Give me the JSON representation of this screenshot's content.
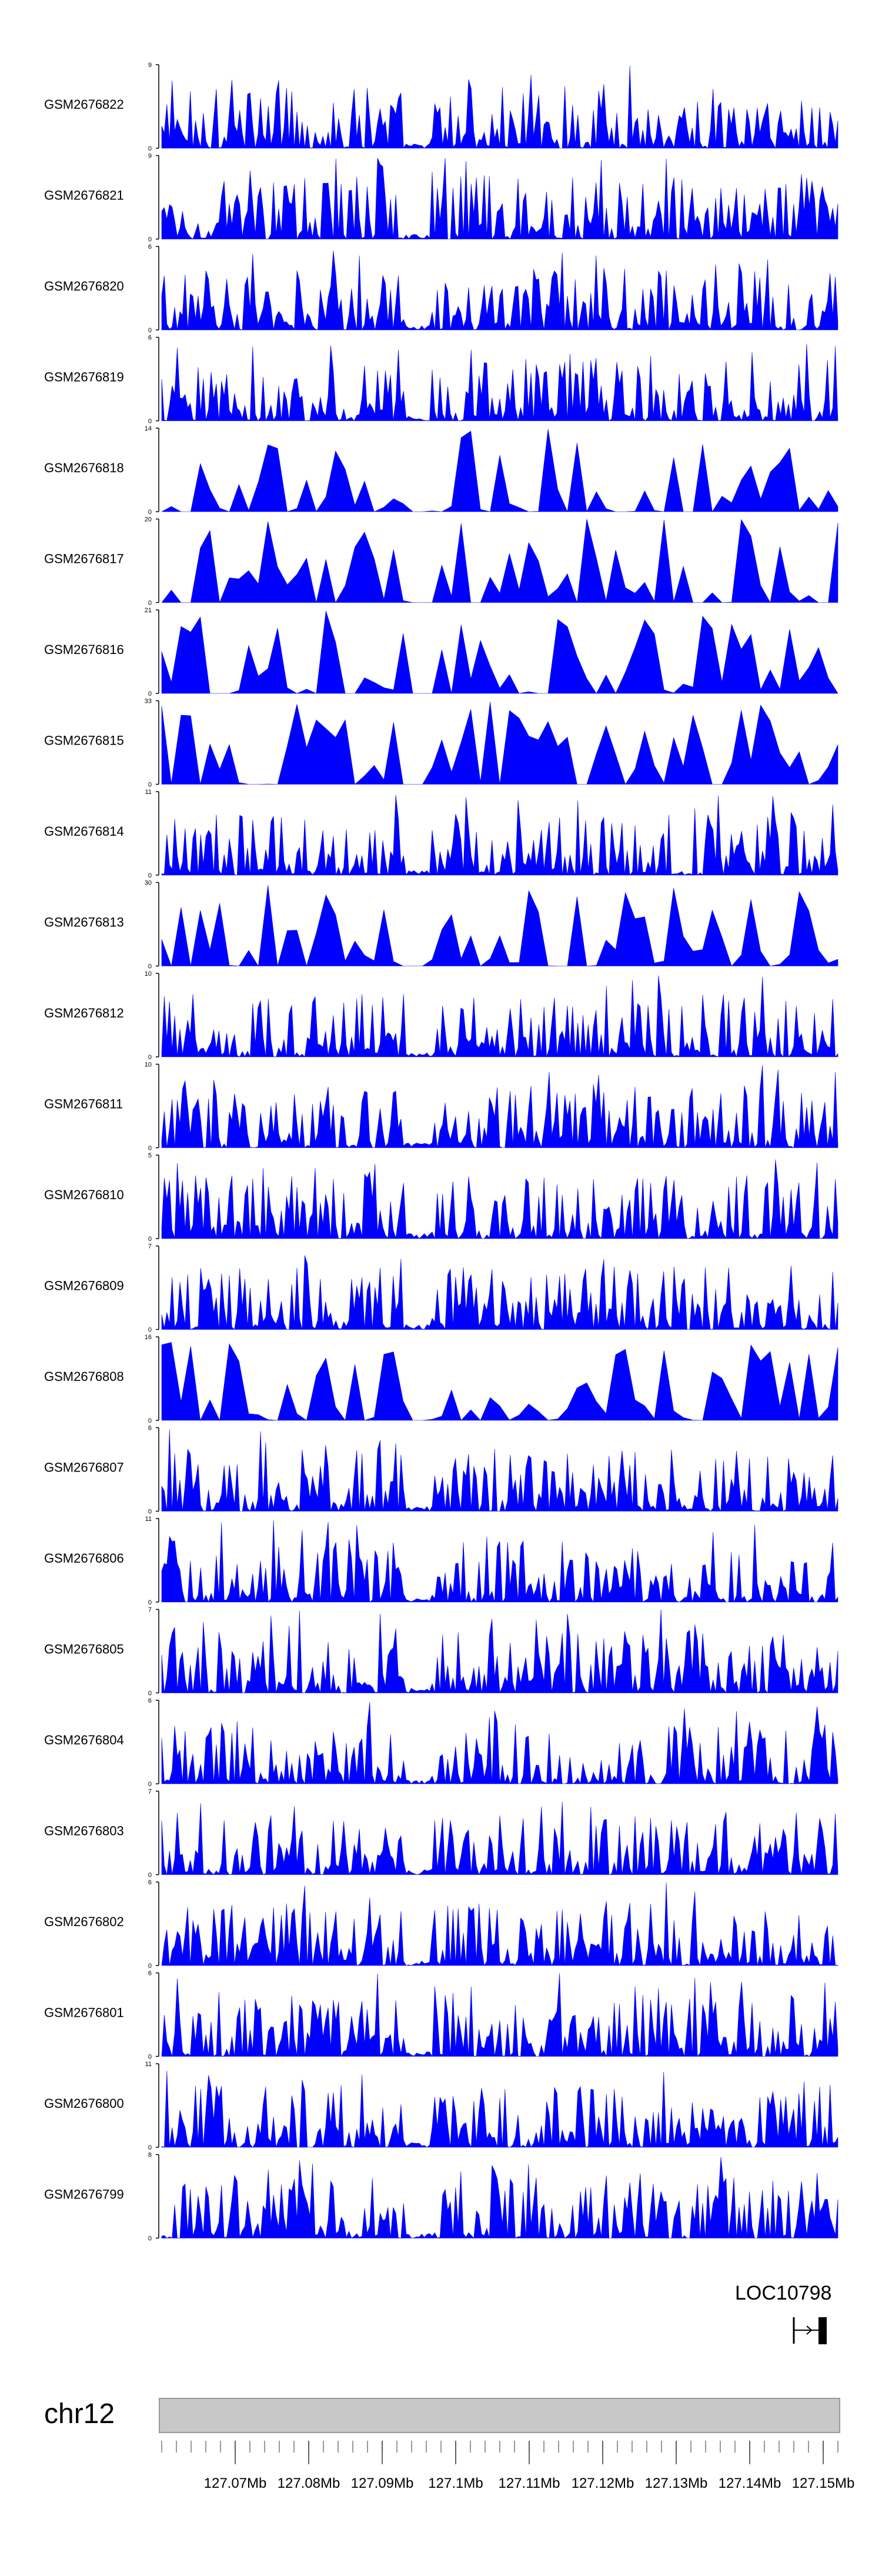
{
  "chart_data": {
    "type": "area",
    "title": "",
    "chromosome": "chr12",
    "region_mb": [
      127.06,
      127.152
    ],
    "fill_color": "#0000ff",
    "tracks": [
      {
        "name": "GSM2676822",
        "ymax": 9
      },
      {
        "name": "GSM2676821",
        "ymax": 9
      },
      {
        "name": "GSM2676820",
        "ymax": 6
      },
      {
        "name": "GSM2676819",
        "ymax": 6
      },
      {
        "name": "GSM2676818",
        "ymax": 14
      },
      {
        "name": "GSM2676817",
        "ymax": 20
      },
      {
        "name": "GSM2676816",
        "ymax": 21
      },
      {
        "name": "GSM2676815",
        "ymax": 33
      },
      {
        "name": "GSM2676814",
        "ymax": 11
      },
      {
        "name": "GSM2676813",
        "ymax": 30
      },
      {
        "name": "GSM2676812",
        "ymax": 10
      },
      {
        "name": "GSM2676811",
        "ymax": 10
      },
      {
        "name": "GSM2676810",
        "ymax": 5
      },
      {
        "name": "GSM2676809",
        "ymax": 7
      },
      {
        "name": "GSM2676808",
        "ymax": 16
      },
      {
        "name": "GSM2676807",
        "ymax": 6
      },
      {
        "name": "GSM2676806",
        "ymax": 11
      },
      {
        "name": "GSM2676805",
        "ymax": 7
      },
      {
        "name": "GSM2676804",
        "ymax": 6
      },
      {
        "name": "GSM2676803",
        "ymax": 7
      },
      {
        "name": "GSM2676802",
        "ymax": 6
      },
      {
        "name": "GSM2676801",
        "ymax": 6
      },
      {
        "name": "GSM2676800",
        "ymax": 11
      },
      {
        "name": "GSM2676799",
        "ymax": 8
      }
    ],
    "gene": {
      "label": "LOC10798",
      "strand": "+"
    },
    "x_ticks": [
      "127.07Mb",
      "127.08Mb",
      "127.09Mb",
      "127.1Mb",
      "127.11Mb",
      "127.12Mb",
      "127.13Mb",
      "127.14Mb",
      "127.15Mb"
    ],
    "x_tick_values": [
      127.07,
      127.08,
      127.09,
      127.1,
      127.11,
      127.12,
      127.13,
      127.14,
      127.15
    ],
    "ideogram_color": "#c8c8c8"
  }
}
